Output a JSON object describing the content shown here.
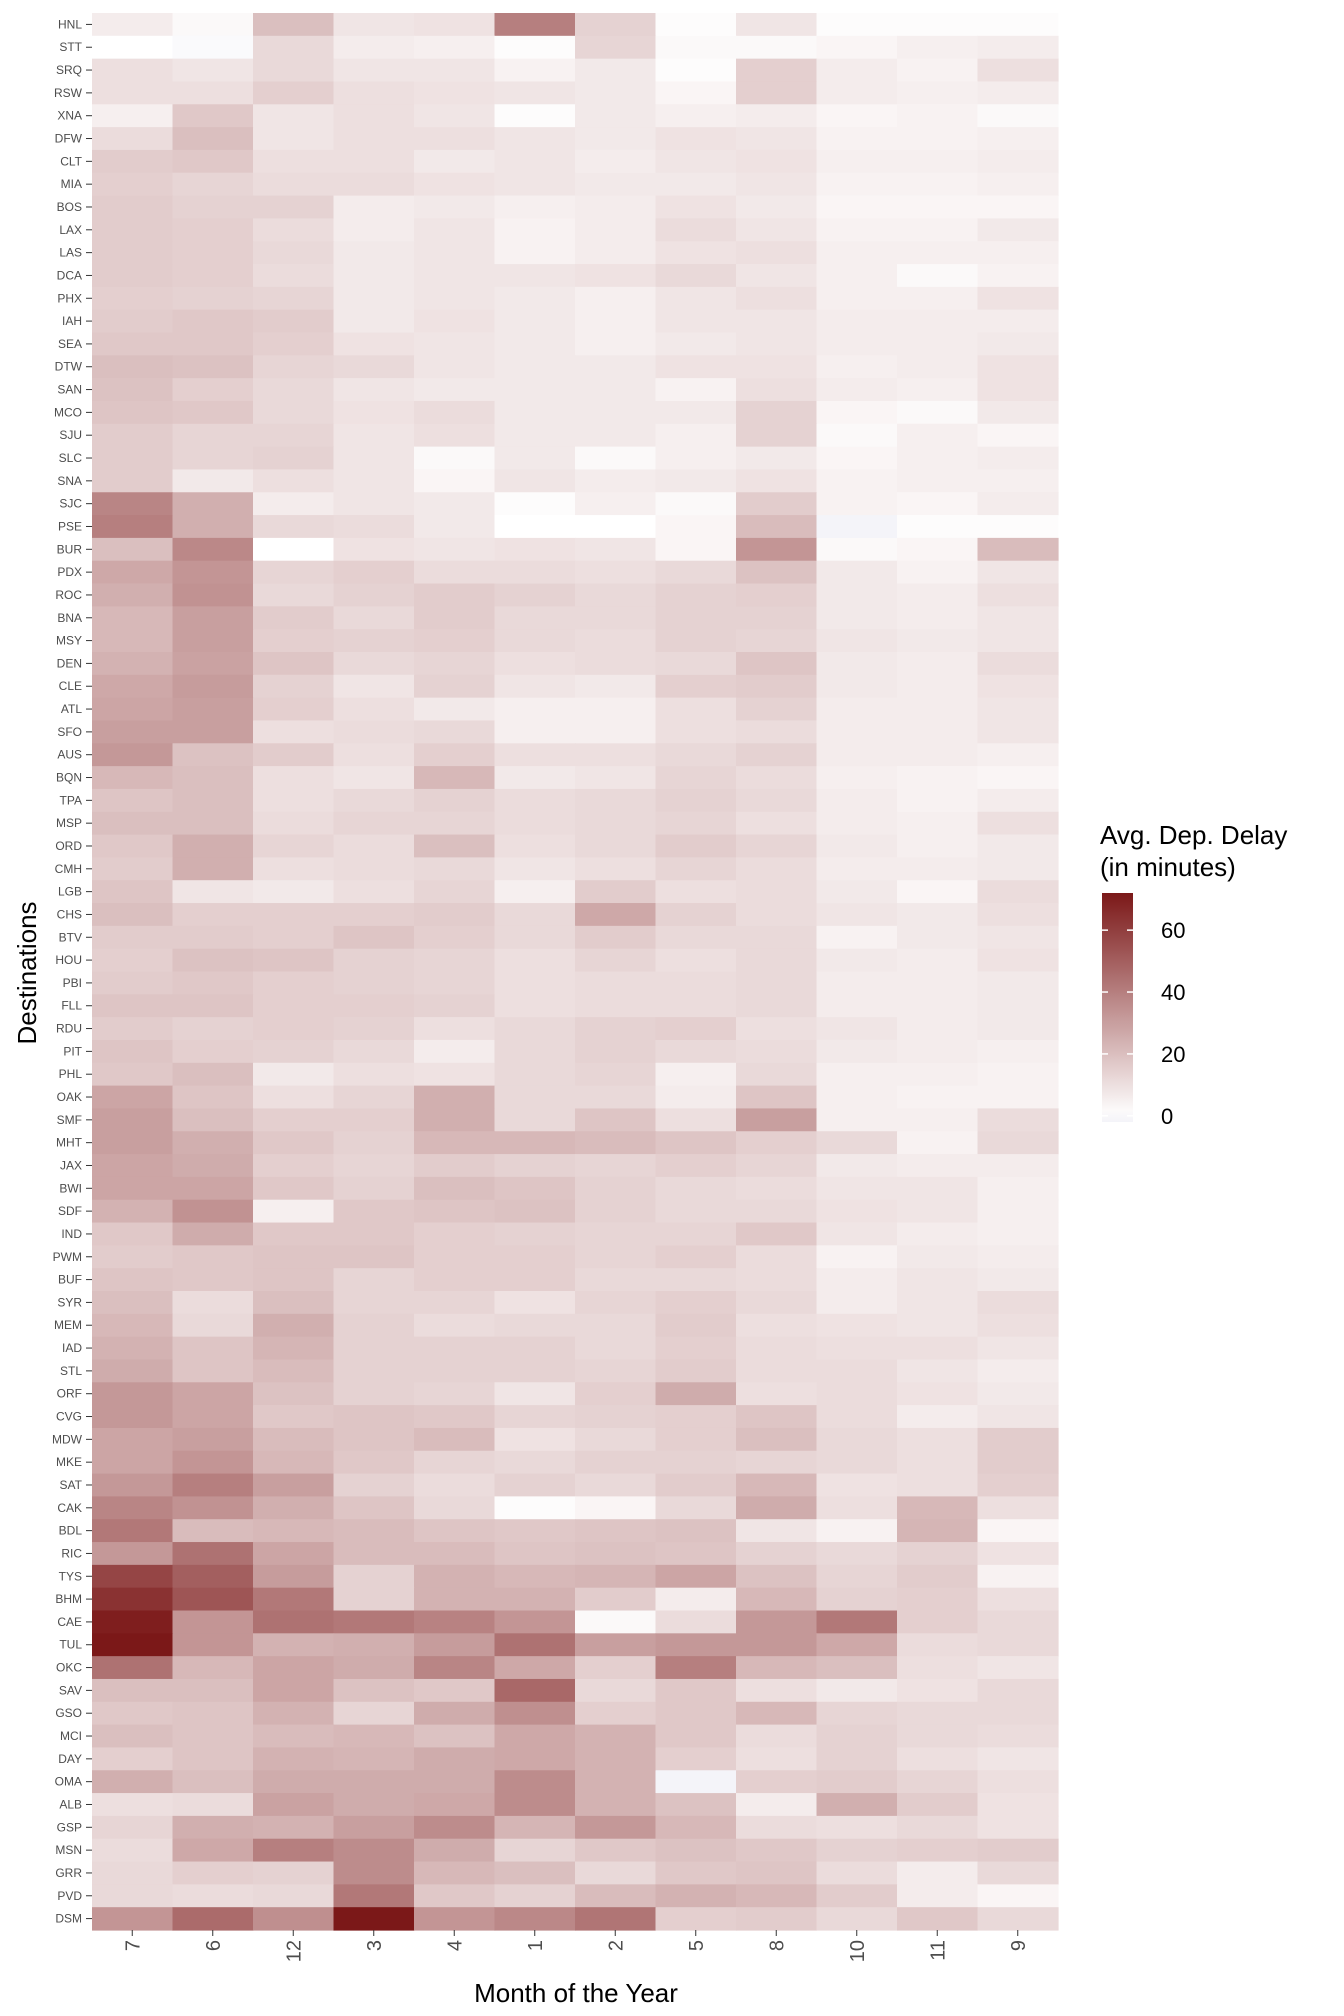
{
  "chart_data": {
    "type": "heatmap",
    "xlabel": "Month of the Year",
    "ylabel": "Destinations",
    "legend": {
      "title_line1": "Avg. Dep. Delay",
      "title_line2": "(in minutes)",
      "ticks": [
        0,
        20,
        40,
        60
      ],
      "range": [
        -2,
        72
      ],
      "placement": "right"
    },
    "colors": {
      "low": "#f4f4f9",
      "mid": "#ffffff",
      "high": "#7b1818",
      "mid_value": 0
    },
    "grid": false,
    "x": [
      "7",
      "6",
      "12",
      "3",
      "4",
      "1",
      "2",
      "5",
      "8",
      "10",
      "11",
      "9"
    ],
    "y": [
      "HNL",
      "STT",
      "SRQ",
      "RSW",
      "XNA",
      "DFW",
      "CLT",
      "MIA",
      "BOS",
      "LAX",
      "LAS",
      "DCA",
      "PHX",
      "IAH",
      "SEA",
      "DTW",
      "SAN",
      "MCO",
      "SJU",
      "SLC",
      "SNA",
      "SJC",
      "PSE",
      "BUR",
      "PDX",
      "ROC",
      "BNA",
      "MSY",
      "DEN",
      "CLE",
      "ATL",
      "SFO",
      "AUS",
      "BQN",
      "TPA",
      "MSP",
      "ORD",
      "CMH",
      "LGB",
      "CHS",
      "BTV",
      "HOU",
      "PBI",
      "FLL",
      "RDU",
      "PIT",
      "PHL",
      "OAK",
      "SMF",
      "MHT",
      "JAX",
      "BWI",
      "SDF",
      "IND",
      "PWM",
      "BUF",
      "SYR",
      "MEM",
      "IAD",
      "STL",
      "ORF",
      "CVG",
      "MDW",
      "MKE",
      "SAT",
      "CAK",
      "BDL",
      "RIC",
      "TYS",
      "BHM",
      "CAE",
      "TUL",
      "OKC",
      "SAV",
      "GSO",
      "MCI",
      "DAY",
      "OMA",
      "ALB",
      "GSP",
      "MSN",
      "GRR",
      "PVD",
      "DSM"
    ],
    "values": [
      [
        6,
        2,
        20,
        8,
        9,
        40,
        14,
        1,
        8,
        1,
        1,
        1
      ],
      [
        0,
        -1,
        12,
        6,
        5,
        1,
        13,
        2,
        2,
        3,
        5,
        6
      ],
      [
        10,
        8,
        12,
        8,
        8,
        4,
        7,
        1,
        15,
        6,
        4,
        10
      ],
      [
        10,
        10,
        15,
        10,
        9,
        8,
        7,
        3,
        15,
        6,
        5,
        6
      ],
      [
        5,
        17,
        8,
        10,
        8,
        1,
        7,
        5,
        6,
        3,
        4,
        2
      ],
      [
        11,
        20,
        8,
        10,
        10,
        8,
        7,
        9,
        8,
        4,
        4,
        5
      ],
      [
        16,
        17,
        10,
        10,
        7,
        8,
        6,
        8,
        9,
        5,
        5,
        6
      ],
      [
        15,
        13,
        11,
        11,
        9,
        8,
        7,
        7,
        8,
        4,
        4,
        5
      ],
      [
        16,
        14,
        14,
        6,
        7,
        5,
        6,
        9,
        7,
        3,
        3,
        3
      ],
      [
        16,
        15,
        11,
        6,
        8,
        4,
        6,
        11,
        8,
        4,
        4,
        7
      ],
      [
        16,
        15,
        12,
        7,
        8,
        4,
        6,
        9,
        10,
        5,
        5,
        5
      ],
      [
        16,
        15,
        11,
        7,
        8,
        8,
        9,
        12,
        8,
        5,
        2,
        4
      ],
      [
        15,
        14,
        13,
        7,
        8,
        7,
        5,
        8,
        10,
        5,
        5,
        9
      ],
      [
        16,
        17,
        16,
        7,
        9,
        7,
        5,
        8,
        8,
        6,
        6,
        6
      ],
      [
        17,
        17,
        15,
        9,
        8,
        7,
        5,
        7,
        8,
        6,
        6,
        7
      ],
      [
        20,
        19,
        13,
        12,
        8,
        7,
        7,
        9,
        9,
        5,
        6,
        9
      ],
      [
        19,
        15,
        12,
        8,
        7,
        7,
        7,
        4,
        10,
        6,
        5,
        9
      ],
      [
        18,
        17,
        12,
        9,
        11,
        7,
        7,
        7,
        14,
        3,
        2,
        7
      ],
      [
        16,
        13,
        13,
        8,
        10,
        7,
        7,
        5,
        14,
        2,
        5,
        3
      ],
      [
        16,
        13,
        14,
        8,
        2,
        7,
        2,
        5,
        7,
        3,
        5,
        6
      ],
      [
        16,
        7,
        10,
        8,
        3,
        8,
        6,
        7,
        9,
        4,
        5,
        5
      ],
      [
        38,
        25,
        6,
        8,
        7,
        1,
        5,
        2,
        16,
        4,
        3,
        6
      ],
      [
        40,
        25,
        12,
        11,
        7,
        0,
        0,
        3,
        21,
        -2,
        1,
        1
      ],
      [
        20,
        37,
        0,
        9,
        8,
        9,
        8,
        3,
        33,
        2,
        3,
        21
      ],
      [
        27,
        33,
        13,
        15,
        11,
        11,
        10,
        12,
        19,
        7,
        4,
        8
      ],
      [
        25,
        34,
        12,
        14,
        16,
        14,
        12,
        14,
        15,
        7,
        6,
        10
      ],
      [
        22,
        30,
        16,
        12,
        16,
        12,
        12,
        14,
        14,
        7,
        6,
        8
      ],
      [
        22,
        30,
        15,
        14,
        15,
        12,
        11,
        14,
        13,
        8,
        7,
        8
      ],
      [
        24,
        29,
        18,
        12,
        13,
        10,
        11,
        12,
        18,
        7,
        6,
        11
      ],
      [
        27,
        31,
        14,
        8,
        14,
        8,
        7,
        15,
        16,
        7,
        6,
        9
      ],
      [
        28,
        30,
        15,
        10,
        7,
        5,
        5,
        10,
        14,
        6,
        6,
        8
      ],
      [
        30,
        30,
        10,
        11,
        12,
        5,
        5,
        10,
        11,
        6,
        6,
        8
      ],
      [
        32,
        19,
        16,
        10,
        15,
        10,
        10,
        12,
        14,
        6,
        6,
        5
      ],
      [
        22,
        20,
        10,
        8,
        22,
        7,
        8,
        13,
        11,
        5,
        4,
        3
      ],
      [
        18,
        20,
        10,
        12,
        14,
        11,
        12,
        14,
        12,
        6,
        4,
        6
      ],
      [
        20,
        20,
        11,
        13,
        13,
        11,
        12,
        13,
        10,
        6,
        5,
        10
      ],
      [
        17,
        25,
        13,
        11,
        20,
        10,
        12,
        16,
        13,
        7,
        5,
        7
      ],
      [
        16,
        25,
        10,
        11,
        12,
        8,
        10,
        13,
        11,
        6,
        6,
        7
      ],
      [
        18,
        8,
        7,
        10,
        13,
        5,
        16,
        10,
        11,
        7,
        3,
        11
      ],
      [
        20,
        15,
        15,
        15,
        16,
        12,
        27,
        14,
        11,
        8,
        7,
        10
      ],
      [
        16,
        16,
        15,
        18,
        15,
        12,
        16,
        12,
        12,
        4,
        7,
        8
      ],
      [
        15,
        19,
        18,
        14,
        13,
        10,
        13,
        10,
        12,
        7,
        6,
        9
      ],
      [
        16,
        17,
        15,
        14,
        13,
        10,
        11,
        11,
        12,
        6,
        6,
        7
      ],
      [
        18,
        18,
        15,
        15,
        14,
        10,
        11,
        11,
        12,
        6,
        6,
        7
      ],
      [
        16,
        14,
        15,
        14,
        10,
        12,
        14,
        15,
        10,
        8,
        6,
        7
      ],
      [
        18,
        15,
        14,
        12,
        6,
        12,
        14,
        12,
        11,
        7,
        6,
        5
      ],
      [
        17,
        20,
        7,
        10,
        9,
        12,
        13,
        5,
        12,
        5,
        5,
        4
      ],
      [
        28,
        18,
        10,
        13,
        25,
        12,
        12,
        6,
        18,
        5,
        4,
        4
      ],
      [
        30,
        20,
        15,
        15,
        25,
        12,
        18,
        10,
        30,
        5,
        5,
        11
      ],
      [
        30,
        25,
        17,
        14,
        22,
        22,
        21,
        18,
        15,
        12,
        4,
        12
      ],
      [
        28,
        26,
        15,
        13,
        16,
        14,
        13,
        15,
        13,
        7,
        6,
        6
      ],
      [
        28,
        28,
        17,
        14,
        20,
        18,
        14,
        12,
        11,
        8,
        8,
        5
      ],
      [
        24,
        34,
        5,
        17,
        18,
        19,
        14,
        12,
        12,
        9,
        8,
        5
      ],
      [
        17,
        26,
        17,
        17,
        15,
        14,
        13,
        13,
        17,
        8,
        6,
        5
      ],
      [
        16,
        17,
        18,
        18,
        15,
        15,
        13,
        15,
        11,
        4,
        7,
        6
      ],
      [
        18,
        17,
        18,
        13,
        15,
        15,
        12,
        12,
        11,
        6,
        8,
        7
      ],
      [
        20,
        11,
        20,
        13,
        13,
        9,
        13,
        15,
        12,
        6,
        8,
        11
      ],
      [
        22,
        12,
        25,
        14,
        11,
        12,
        12,
        16,
        10,
        9,
        8,
        10
      ],
      [
        24,
        18,
        23,
        14,
        14,
        14,
        12,
        15,
        11,
        10,
        10,
        8
      ],
      [
        26,
        18,
        21,
        14,
        14,
        14,
        13,
        16,
        11,
        11,
        8,
        6
      ],
      [
        32,
        28,
        19,
        14,
        13,
        8,
        15,
        26,
        10,
        11,
        9,
        7
      ],
      [
        32,
        28,
        17,
        18,
        17,
        13,
        14,
        15,
        18,
        11,
        6,
        8
      ],
      [
        28,
        30,
        21,
        18,
        21,
        9,
        12,
        15,
        20,
        12,
        10,
        16
      ],
      [
        28,
        33,
        22,
        17,
        13,
        12,
        14,
        14,
        13,
        12,
        10,
        16
      ],
      [
        32,
        40,
        30,
        14,
        11,
        14,
        12,
        16,
        22,
        9,
        10,
        15
      ],
      [
        38,
        34,
        25,
        18,
        12,
        1,
        3,
        12,
        26,
        10,
        22,
        10
      ],
      [
        42,
        21,
        22,
        21,
        18,
        17,
        18,
        19,
        8,
        4,
        23,
        3
      ],
      [
        32,
        44,
        28,
        21,
        21,
        18,
        19,
        18,
        14,
        12,
        14,
        9
      ],
      [
        58,
        50,
        31,
        14,
        24,
        22,
        23,
        28,
        19,
        13,
        16,
        4
      ],
      [
        64,
        53,
        42,
        14,
        24,
        24,
        16,
        6,
        22,
        14,
        15,
        10
      ],
      [
        70,
        33,
        44,
        42,
        39,
        33,
        2,
        11,
        32,
        42,
        15,
        12
      ],
      [
        72,
        33,
        24,
        25,
        31,
        44,
        30,
        32,
        32,
        27,
        11,
        12
      ],
      [
        44,
        22,
        28,
        26,
        38,
        27,
        15,
        40,
        22,
        20,
        10,
        8
      ],
      [
        20,
        20,
        28,
        19,
        17,
        47,
        12,
        17,
        10,
        7,
        9,
        12
      ],
      [
        17,
        18,
        24,
        13,
        26,
        35,
        15,
        17,
        22,
        13,
        12,
        12
      ],
      [
        20,
        18,
        21,
        22,
        19,
        27,
        24,
        17,
        11,
        14,
        12,
        11
      ],
      [
        15,
        18,
        24,
        23,
        26,
        27,
        24,
        15,
        10,
        14,
        10,
        8
      ],
      [
        25,
        20,
        26,
        26,
        26,
        36,
        24,
        -2,
        15,
        16,
        13,
        10
      ],
      [
        10,
        11,
        29,
        26,
        27,
        36,
        24,
        19,
        6,
        25,
        16,
        9
      ],
      [
        13,
        25,
        24,
        30,
        36,
        23,
        32,
        22,
        11,
        10,
        12,
        9
      ],
      [
        11,
        27,
        40,
        36,
        26,
        13,
        17,
        19,
        17,
        14,
        15,
        16
      ],
      [
        12,
        15,
        14,
        36,
        22,
        20,
        12,
        17,
        18,
        11,
        6,
        12
      ],
      [
        12,
        11,
        12,
        42,
        17,
        14,
        21,
        24,
        22,
        16,
        6,
        3
      ],
      [
        33,
        46,
        35,
        72,
        33,
        37,
        43,
        15,
        16,
        12,
        17,
        12
      ]
    ]
  }
}
